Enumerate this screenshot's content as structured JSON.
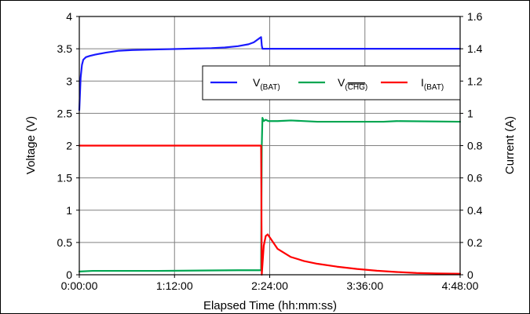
{
  "chart_data": {
    "type": "line",
    "xlabel": "Elapsed Time (hh:mm:ss)",
    "ylabel_left": "Voltage (V)",
    "ylabel_right": "Current (A)",
    "x_unit": "minutes",
    "x_ticks": [
      {
        "value": 0,
        "label": "0:00:00"
      },
      {
        "value": 72,
        "label": "1:12:00"
      },
      {
        "value": 144,
        "label": "2:24:00"
      },
      {
        "value": 216,
        "label": "3:36:00"
      },
      {
        "value": 288,
        "label": "4:48:00"
      }
    ],
    "xlim": [
      0,
      288
    ],
    "ylim_left": [
      0,
      4
    ],
    "ylim_right": [
      0,
      1.6
    ],
    "y_left_ticks": [
      "0",
      "0.5",
      "1",
      "1.5",
      "2",
      "2.5",
      "3",
      "3.5",
      "4"
    ],
    "y_right_ticks": [
      "0",
      "0.2",
      "0.4",
      "0.6",
      "0.8",
      "1",
      "1.2",
      "1.4",
      "1.6"
    ],
    "grid": true,
    "legend_position": "top-right",
    "series": [
      {
        "name_main": "V",
        "name_sub": "(BAT)",
        "name_overline": "",
        "name_sub_end": "",
        "axis": "left",
        "color": "#1a1aff",
        "points": [
          [
            0,
            2.55
          ],
          [
            1,
            3.05
          ],
          [
            2,
            3.25
          ],
          [
            3,
            3.33
          ],
          [
            5,
            3.37
          ],
          [
            8,
            3.39
          ],
          [
            12,
            3.41
          ],
          [
            20,
            3.44
          ],
          [
            30,
            3.47
          ],
          [
            40,
            3.48
          ],
          [
            60,
            3.49
          ],
          [
            80,
            3.5
          ],
          [
            100,
            3.51
          ],
          [
            110,
            3.52
          ],
          [
            120,
            3.54
          ],
          [
            128,
            3.57
          ],
          [
            132,
            3.6
          ],
          [
            136,
            3.66
          ],
          [
            137.5,
            3.68
          ],
          [
            138,
            3.55
          ],
          [
            138.5,
            3.5
          ],
          [
            180,
            3.5
          ],
          [
            240,
            3.5
          ],
          [
            288,
            3.5
          ]
        ]
      },
      {
        "name_main": "V",
        "name_sub": "(",
        "name_overline": "CHG",
        "name_sub_end": ")",
        "axis": "left",
        "color": "#00a651",
        "points": [
          [
            0,
            0.05
          ],
          [
            10,
            0.06
          ],
          [
            60,
            0.06
          ],
          [
            120,
            0.07
          ],
          [
            137.5,
            0.07
          ],
          [
            138,
            2.0
          ],
          [
            138.5,
            2.43
          ],
          [
            139.5,
            2.38
          ],
          [
            141,
            2.4
          ],
          [
            143,
            2.38
          ],
          [
            150,
            2.38
          ],
          [
            160,
            2.39
          ],
          [
            180,
            2.37
          ],
          [
            230,
            2.37
          ],
          [
            240,
            2.38
          ],
          [
            288,
            2.37
          ]
        ]
      },
      {
        "name_main": "I",
        "name_sub": "(BAT)",
        "name_overline": "",
        "name_sub_end": "",
        "axis": "right",
        "color": "#ff0000",
        "points": [
          [
            0,
            0.8
          ],
          [
            60,
            0.8
          ],
          [
            137.5,
            0.8
          ],
          [
            138,
            0.0
          ],
          [
            139.5,
            0.18
          ],
          [
            141,
            0.24
          ],
          [
            142.5,
            0.25
          ],
          [
            145,
            0.22
          ],
          [
            150,
            0.16
          ],
          [
            160,
            0.11
          ],
          [
            170,
            0.085
          ],
          [
            180,
            0.068
          ],
          [
            195,
            0.05
          ],
          [
            210,
            0.036
          ],
          [
            225,
            0.025
          ],
          [
            240,
            0.017
          ],
          [
            255,
            0.011
          ],
          [
            270,
            0.008
          ],
          [
            288,
            0.006
          ]
        ]
      }
    ]
  }
}
